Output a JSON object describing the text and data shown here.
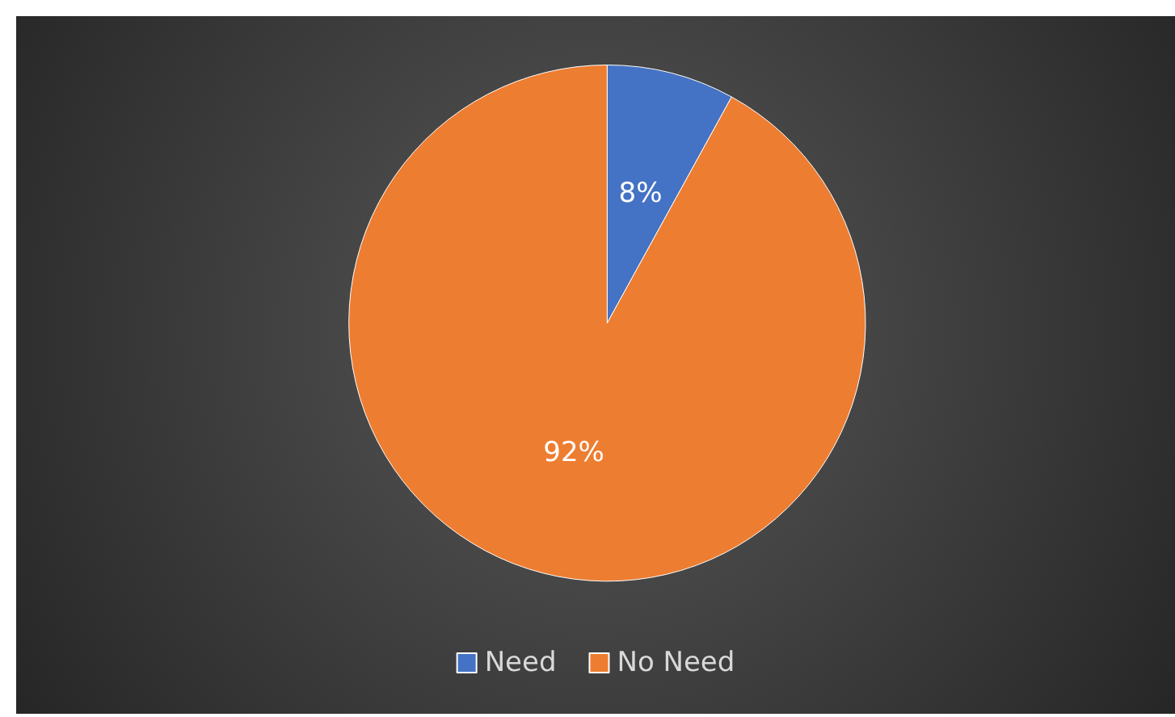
{
  "chart_data": {
    "type": "pie",
    "categories": [
      "Need",
      "No Need"
    ],
    "values": [
      8,
      92
    ],
    "value_labels": [
      "8%",
      "92%"
    ],
    "colors": [
      "#4472c4",
      "#ed7d31"
    ],
    "legend": "bottom"
  }
}
